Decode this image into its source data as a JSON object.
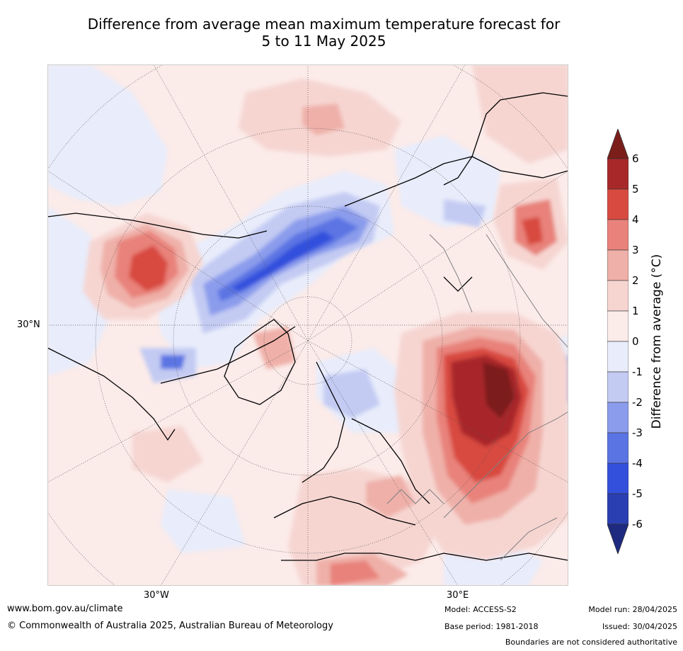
{
  "title": {
    "line1": "Difference from average mean maximum temperature forecast for",
    "line2": "5 to 11 May 2025"
  },
  "map": {
    "projection": "north-polar-stereographic",
    "lat_labels": [
      "30°N"
    ],
    "lon_labels": [
      "30°W",
      "30°E"
    ],
    "colors": {
      "neutral_pos": "#fbebe9",
      "neutral_neg": "#e8ecfb",
      "coast": "#000000",
      "borders": "#808080"
    }
  },
  "colorbar": {
    "label": "Difference from average (°C)",
    "ticks": [
      "6",
      "5",
      "4",
      "3",
      "2",
      "1",
      "0",
      "-1",
      "-2",
      "-3",
      "-4",
      "-5",
      "-6"
    ],
    "colors": [
      "#7b1e1a",
      "#a8282a",
      "#d84a40",
      "#e8827a",
      "#efb0a9",
      "#f6d5d1",
      "#fbebe9",
      "#e8ecfb",
      "#c3cbf3",
      "#8b9cec",
      "#5b74e3",
      "#3350dd",
      "#2a3fb1",
      "#1d2a80"
    ]
  },
  "footer": {
    "website": "www.bom.gov.au/climate",
    "copyright": "© Commonwealth of Australia 2025, Australian Bureau of Meteorology",
    "model": "Model: ACCESS-S2",
    "base_period": "Base period: 1981-2018",
    "model_run": "Model run: 28/04/2025",
    "issued": "Issued: 30/04/2025",
    "disclaimer": "Boundaries are not considered authoritative"
  }
}
